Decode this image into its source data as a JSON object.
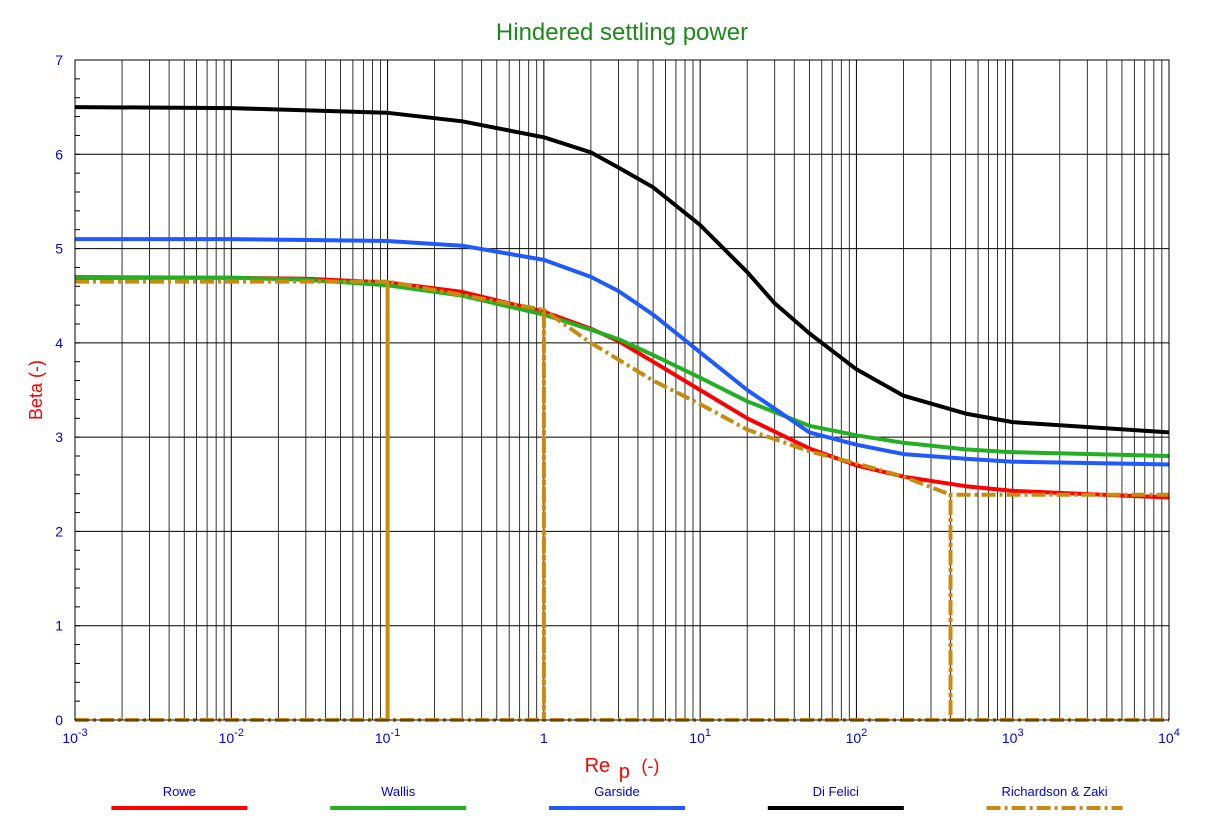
{
  "colors": {
    "title": "#1b8a1b",
    "axis_ticks": "#0000ee",
    "axis_labels": "#ff0000",
    "grid": "#000000"
  },
  "chart_data": {
    "type": "line",
    "title": "Hindered settling power",
    "xlabel_main": "Re",
    "xlabel_sub": "p",
    "xlabel_unit": "(-)",
    "ylabel": "Beta (-)",
    "xscale": "log",
    "xlim": [
      0.001,
      10000
    ],
    "ylim": [
      0,
      7
    ],
    "grid": true,
    "legend_position": "bottom",
    "x_tick_labels": [
      {
        "base": "10",
        "exp": "-3",
        "value": 0.001
      },
      {
        "base": "10",
        "exp": "-2",
        "value": 0.01
      },
      {
        "base": "10",
        "exp": "-1",
        "value": 0.1
      },
      {
        "base": "1",
        "exp": "",
        "value": 1
      },
      {
        "base": "10",
        "exp": "1",
        "value": 10
      },
      {
        "base": "10",
        "exp": "2",
        "value": 100
      },
      {
        "base": "10",
        "exp": "3",
        "value": 1000
      },
      {
        "base": "10",
        "exp": "4",
        "value": 10000
      }
    ],
    "y_tick_labels": [
      "0",
      "1",
      "2",
      "3",
      "4",
      "5",
      "6",
      "7"
    ],
    "series": [
      {
        "name": "Rowe",
        "color": "#ff0000",
        "style": "solid",
        "x": [
          0.001,
          0.01,
          0.03,
          0.1,
          0.3,
          1,
          2,
          3,
          5,
          10,
          20,
          50,
          100,
          200,
          500,
          1000,
          10000
        ],
        "y": [
          4.69,
          4.69,
          4.68,
          4.64,
          4.54,
          4.33,
          4.15,
          4.02,
          3.8,
          3.5,
          3.2,
          2.88,
          2.7,
          2.58,
          2.48,
          2.43,
          2.36
        ]
      },
      {
        "name": "Wallis",
        "color": "#22b022",
        "style": "solid",
        "x": [
          0.001,
          0.01,
          0.03,
          0.1,
          0.3,
          1,
          2,
          3,
          5,
          10,
          20,
          50,
          100,
          200,
          500,
          1000,
          10000
        ],
        "y": [
          4.7,
          4.69,
          4.67,
          4.61,
          4.5,
          4.3,
          4.14,
          4.04,
          3.87,
          3.63,
          3.38,
          3.12,
          3.02,
          2.94,
          2.87,
          2.84,
          2.8
        ]
      },
      {
        "name": "Garside",
        "color": "#1e5aff",
        "style": "solid",
        "x": [
          0.001,
          0.01,
          0.1,
          0.3,
          1,
          2,
          3,
          5,
          10,
          20,
          50,
          100,
          200,
          500,
          1000,
          10000
        ],
        "y": [
          5.1,
          5.1,
          5.08,
          5.03,
          4.88,
          4.7,
          4.55,
          4.3,
          3.9,
          3.5,
          3.05,
          2.92,
          2.82,
          2.77,
          2.74,
          2.71
        ]
      },
      {
        "name": "Di Felici",
        "color": "#000000",
        "style": "solid",
        "x": [
          0.001,
          0.01,
          0.1,
          0.3,
          1,
          2,
          3,
          5,
          10,
          20,
          30,
          50,
          100,
          200,
          500,
          1000,
          10000
        ],
        "y": [
          6.5,
          6.49,
          6.44,
          6.35,
          6.18,
          6.02,
          5.86,
          5.65,
          5.25,
          4.75,
          4.42,
          4.1,
          3.72,
          3.44,
          3.25,
          3.16,
          3.05
        ]
      },
      {
        "name": "Richardson & Zaki",
        "color": "#c88a10",
        "style": "dashdot",
        "x": [
          0.001,
          0.1,
          0.1,
          0.1,
          1,
          1,
          1,
          2,
          5,
          10,
          20,
          50,
          100,
          200,
          400,
          400,
          400,
          10000
        ],
        "y": [
          4.65,
          4.65,
          0,
          4.65,
          4.35,
          0,
          4.35,
          4.0,
          3.6,
          3.35,
          3.08,
          2.85,
          2.72,
          2.58,
          2.39,
          0,
          2.39,
          2.39
        ]
      }
    ]
  }
}
